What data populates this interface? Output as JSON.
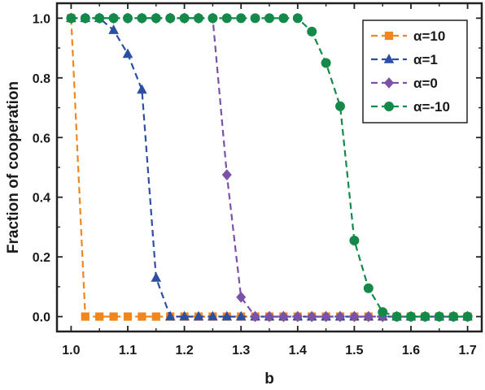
{
  "chart_data": {
    "type": "line",
    "xlabel": "b",
    "ylabel": "Fraction of cooperation",
    "xlim": [
      0.975,
      1.725
    ],
    "ylim": [
      -0.05,
      1.05
    ],
    "xticks": [
      "1.0",
      "1.1",
      "1.2",
      "1.3",
      "1.4",
      "1.5",
      "1.6",
      "1.7"
    ],
    "yticks": [
      "0.0",
      "0.2",
      "0.4",
      "0.6",
      "0.8",
      "1.0"
    ],
    "grid": false,
    "legend_position": "top-right",
    "x": [
      1.0,
      1.025,
      1.05,
      1.075,
      1.1,
      1.125,
      1.15,
      1.175,
      1.2,
      1.225,
      1.25,
      1.275,
      1.3,
      1.325,
      1.35,
      1.375,
      1.4,
      1.425,
      1.45,
      1.475,
      1.5,
      1.525,
      1.55,
      1.575,
      1.6,
      1.625,
      1.65,
      1.675,
      1.7
    ],
    "series": [
      {
        "name": "α=10",
        "color": "#f0861e",
        "marker": "square",
        "values": [
          1.0,
          0.0,
          0.0,
          0.0,
          0.0,
          0.0,
          0.0,
          0.0,
          0.0,
          0.0,
          0.0,
          0.0,
          0.0,
          0.0,
          0.0,
          0.0,
          0.0,
          0.0,
          0.0,
          0.0,
          0.0,
          0.0,
          0.0,
          0.0,
          0.0,
          0.0,
          0.0,
          0.0,
          0.0
        ]
      },
      {
        "name": "α=1",
        "color": "#2d4fa3",
        "marker": "triangle",
        "values": [
          1.0,
          1.0,
          1.0,
          0.96,
          0.88,
          0.76,
          0.13,
          0.0,
          0.0,
          0.0,
          0.0,
          0.0,
          0.0,
          0.0,
          0.0,
          0.0,
          0.0,
          0.0,
          0.0,
          0.0,
          0.0,
          0.0,
          0.0,
          0.0,
          0.0,
          0.0,
          0.0,
          0.0,
          0.0
        ]
      },
      {
        "name": "α=0",
        "color": "#7b52a8",
        "marker": "diamond",
        "values": [
          1.0,
          1.0,
          1.0,
          1.0,
          1.0,
          1.0,
          1.0,
          1.0,
          1.0,
          1.0,
          1.0,
          0.475,
          0.065,
          0.0,
          0.0,
          0.0,
          0.0,
          0.0,
          0.0,
          0.0,
          0.0,
          0.0,
          0.0,
          0.0,
          0.0,
          0.0,
          0.0,
          0.0,
          0.0
        ]
      },
      {
        "name": "α=-10",
        "color": "#138a4a",
        "marker": "circle",
        "values": [
          1.0,
          1.0,
          1.0,
          1.0,
          1.0,
          1.0,
          1.0,
          1.0,
          1.0,
          1.0,
          1.0,
          1.0,
          1.0,
          1.0,
          1.0,
          1.0,
          1.0,
          0.955,
          0.85,
          0.705,
          0.255,
          0.095,
          0.015,
          0.0,
          0.0,
          0.0,
          0.0,
          0.0,
          0.0
        ]
      }
    ]
  }
}
